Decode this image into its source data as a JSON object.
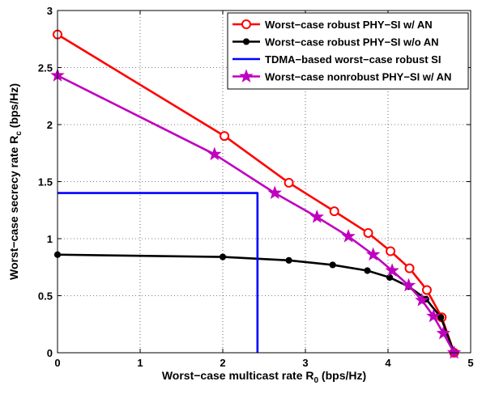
{
  "chart_data": {
    "type": "line",
    "xlabel": "Worst−case multicast rate R",
    "xlabel_sub": "0",
    "xlabel_unit": " (bps/Hz)",
    "ylabel": "Worst−case secrecy rate R",
    "ylabel_sub": "c",
    "ylabel_unit": " (bps/Hz)",
    "xlim": [
      0,
      5
    ],
    "ylim": [
      0,
      3
    ],
    "xticks": [
      "0",
      "1",
      "2",
      "3",
      "4",
      "5"
    ],
    "yticks": [
      "0",
      "0.5",
      "1",
      "1.5",
      "2",
      "2.5",
      "3"
    ],
    "grid": true,
    "legend_position": "top-right",
    "series": [
      {
        "name": "Worst−case robust PHY−SI w/ AN",
        "color": "#ff0000",
        "marker": "circle-open",
        "x": [
          0,
          2.02,
          2.8,
          3.35,
          3.76,
          4.03,
          4.26,
          4.47,
          4.65,
          4.8
        ],
        "y": [
          2.79,
          1.9,
          1.49,
          1.24,
          1.05,
          0.89,
          0.74,
          0.55,
          0.31,
          0.0
        ]
      },
      {
        "name": "Worst−case robust PHY−SI w/o AN",
        "color": "#000000",
        "marker": "circle-filled",
        "x": [
          0,
          2.0,
          2.8,
          3.33,
          3.75,
          4.02,
          4.25,
          4.46,
          4.64,
          4.8
        ],
        "y": [
          0.86,
          0.84,
          0.81,
          0.77,
          0.72,
          0.66,
          0.58,
          0.47,
          0.31,
          0.0
        ]
      },
      {
        "name": "TDMA−based worst−case robust SI",
        "color": "#0000ff",
        "marker": "none",
        "x": [
          0,
          2.42,
          2.42
        ],
        "y": [
          1.4,
          1.4,
          0
        ]
      },
      {
        "name": "Worst−case nonrobust PHY−SI w/ AN",
        "color": "#bf00bf",
        "marker": "star",
        "x": [
          0,
          1.9,
          2.63,
          3.14,
          3.52,
          3.82,
          4.05,
          4.25,
          4.41,
          4.55,
          4.67,
          4.8
        ],
        "y": [
          2.43,
          1.74,
          1.4,
          1.19,
          1.02,
          0.86,
          0.72,
          0.59,
          0.46,
          0.32,
          0.17,
          0.0
        ]
      }
    ]
  }
}
